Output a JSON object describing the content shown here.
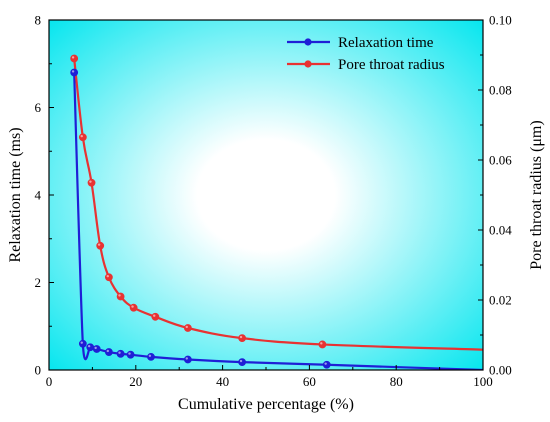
{
  "chart_data": {
    "type": "line",
    "xlabel": "Cumulative percentage (%)",
    "ylabel_left": "Relaxation time (ms)",
    "ylabel_right": "Pore throat radius (μm)",
    "xlim": [
      0,
      100
    ],
    "ylim_left": [
      0,
      8
    ],
    "ylim_right": [
      0,
      0.1
    ],
    "x_ticks": [
      "0",
      "20",
      "40",
      "60",
      "80",
      "100"
    ],
    "y_left_ticks": [
      "0",
      "2",
      "4",
      "6",
      "8"
    ],
    "y_right_ticks": [
      "0.00",
      "0.02",
      "0.04",
      "0.06",
      "0.08",
      "0.10"
    ],
    "grid": false,
    "legend_position": "top-right",
    "colors": {
      "relaxation": "#1f1fd6",
      "pore": "#e83232",
      "gradient_edge": "#00e5ee",
      "gradient_center": "#ffffff"
    },
    "series": [
      {
        "name": "Relaxation time",
        "axis": "left",
        "x": [
          5.8,
          7.8,
          9.5,
          11,
          13.8,
          16.5,
          18.8,
          23.5,
          32,
          44.5,
          64,
          100
        ],
        "y": [
          6.8,
          0.6,
          0.52,
          0.48,
          0.41,
          0.37,
          0.35,
          0.3,
          0.24,
          0.18,
          0.12,
          0.0
        ]
      },
      {
        "name": "Pore throat radius",
        "axis": "right",
        "x": [
          5.8,
          7.8,
          9.8,
          11.8,
          13.8,
          16.5,
          19.5,
          24.5,
          32,
          44.5,
          63,
          100
        ],
        "y": [
          0.089,
          0.0665,
          0.0535,
          0.0355,
          0.0265,
          0.021,
          0.0178,
          0.0152,
          0.012,
          0.0091,
          0.0073,
          0.0058
        ]
      }
    ]
  }
}
